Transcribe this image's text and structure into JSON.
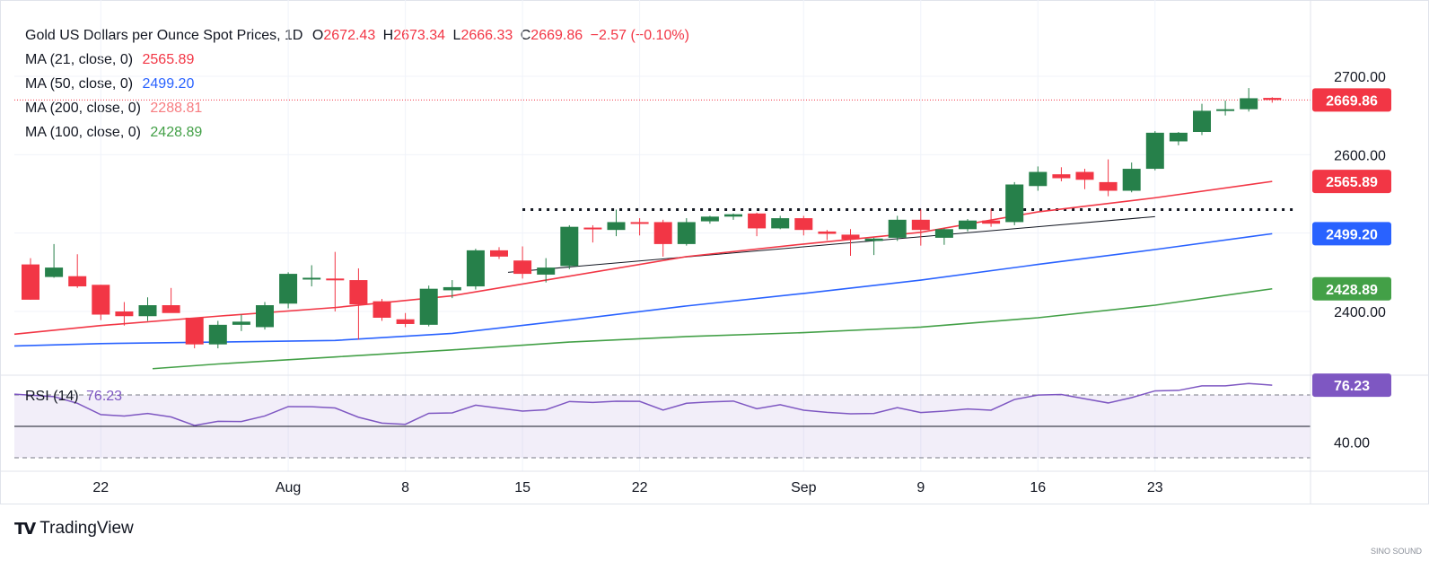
{
  "header": {
    "symbol": "Gold US Dollars per Ounce Spot Prices, 1D",
    "open_label": "O",
    "open": "2672.43",
    "high_label": "H",
    "high": "2673.34",
    "low_label": "L",
    "low": "2666.33",
    "close_label": "C",
    "close": "2669.86",
    "change": "−2.57 (−0.10%)"
  },
  "indicators": [
    {
      "label": "MA (21, close, 0)",
      "value": "2565.89",
      "color": "#f23645"
    },
    {
      "label": "MA (50, close, 0)",
      "value": "2499.20",
      "color": "#2962ff"
    },
    {
      "label": "MA (200, close, 0)",
      "value": "2288.81",
      "color": "#f77c80"
    },
    {
      "label": "MA (100, close, 0)",
      "value": "2428.89",
      "color": "#43a047"
    }
  ],
  "rsi": {
    "label": "RSI (14)",
    "value": "76.23",
    "color": "#7e57c2"
  },
  "branding": {
    "name": "TradingView",
    "watermark": "SINO SOUND"
  },
  "colors": {
    "up": "#26804a",
    "down": "#f23645",
    "ma21": "#f23645",
    "ma50": "#2962ff",
    "ma100": "#43a047",
    "rsi": "#7e57c2"
  },
  "chart_data": {
    "type": "candlestick",
    "price_axis": {
      "ticks": [
        "2700.00",
        "2600.00",
        "2400.00"
      ],
      "ylim": [
        2325,
        2727
      ]
    },
    "rsi_axis": {
      "ticks": [
        "40.00"
      ],
      "lines": [
        70,
        30
      ]
    },
    "x_ticks": [
      {
        "label": "22",
        "date": "2024-07-22"
      },
      {
        "label": "Aug",
        "date": "2024-08-01"
      },
      {
        "label": "8",
        "date": "2024-08-08"
      },
      {
        "label": "15",
        "date": "2024-08-15"
      },
      {
        "label": "22",
        "date": "2024-08-22"
      },
      {
        "label": "Sep",
        "date": "2024-09-02"
      },
      {
        "label": "9",
        "date": "2024-09-09"
      },
      {
        "label": "16",
        "date": "2024-09-16"
      },
      {
        "label": "23",
        "date": "2024-09-23"
      }
    ],
    "candles": [
      {
        "date": "2024-07-17",
        "o": 2460,
        "h": 2468,
        "l": 2415,
        "c": 2415
      },
      {
        "date": "2024-07-18",
        "o": 2444,
        "h": 2486,
        "l": 2443,
        "c": 2456
      },
      {
        "date": "2024-07-19",
        "o": 2445,
        "h": 2473,
        "l": 2430,
        "c": 2432
      },
      {
        "date": "2024-07-22",
        "o": 2434,
        "h": 2434,
        "l": 2389,
        "c": 2396
      },
      {
        "date": "2024-07-23",
        "o": 2400,
        "h": 2412,
        "l": 2382,
        "c": 2394
      },
      {
        "date": "2024-07-24",
        "o": 2394,
        "h": 2418,
        "l": 2388,
        "c": 2408
      },
      {
        "date": "2024-07-25",
        "o": 2408,
        "h": 2430,
        "l": 2400,
        "c": 2398
      },
      {
        "date": "2024-07-26",
        "o": 2392,
        "h": 2392,
        "l": 2353,
        "c": 2358
      },
      {
        "date": "2024-07-29",
        "o": 2358,
        "h": 2388,
        "l": 2353,
        "c": 2383
      },
      {
        "date": "2024-07-30",
        "o": 2383,
        "h": 2396,
        "l": 2375,
        "c": 2387
      },
      {
        "date": "2024-07-31",
        "o": 2380,
        "h": 2412,
        "l": 2377,
        "c": 2408
      },
      {
        "date": "2024-08-01",
        "o": 2410,
        "h": 2450,
        "l": 2404,
        "c": 2448
      },
      {
        "date": "2024-08-02",
        "o": 2443,
        "h": 2459,
        "l": 2432,
        "c": 2443
      },
      {
        "date": "2024-08-05",
        "o": 2442,
        "h": 2476,
        "l": 2400,
        "c": 2441
      },
      {
        "date": "2024-08-06",
        "o": 2440,
        "h": 2455,
        "l": 2364,
        "c": 2409
      },
      {
        "date": "2024-08-07",
        "o": 2413,
        "h": 2416,
        "l": 2388,
        "c": 2392
      },
      {
        "date": "2024-08-08",
        "o": 2390,
        "h": 2398,
        "l": 2380,
        "c": 2384
      },
      {
        "date": "2024-08-09",
        "o": 2383,
        "h": 2433,
        "l": 2381,
        "c": 2429
      },
      {
        "date": "2024-08-12",
        "o": 2427,
        "h": 2440,
        "l": 2417,
        "c": 2431
      },
      {
        "date": "2024-08-13",
        "o": 2432,
        "h": 2480,
        "l": 2428,
        "c": 2478
      },
      {
        "date": "2024-08-14",
        "o": 2478,
        "h": 2482,
        "l": 2467,
        "c": 2470
      },
      {
        "date": "2024-08-15",
        "o": 2465,
        "h": 2483,
        "l": 2442,
        "c": 2448
      },
      {
        "date": "2024-08-16",
        "o": 2447,
        "h": 2468,
        "l": 2437,
        "c": 2456
      },
      {
        "date": "2024-08-19",
        "o": 2458,
        "h": 2510,
        "l": 2454,
        "c": 2508
      },
      {
        "date": "2024-08-20",
        "o": 2507,
        "h": 2510,
        "l": 2488,
        "c": 2506
      },
      {
        "date": "2024-08-21",
        "o": 2504,
        "h": 2530,
        "l": 2496,
        "c": 2514
      },
      {
        "date": "2024-08-22",
        "o": 2514,
        "h": 2519,
        "l": 2497,
        "c": 2512
      },
      {
        "date": "2024-08-23",
        "o": 2514,
        "h": 2517,
        "l": 2470,
        "c": 2486
      },
      {
        "date": "2024-08-26",
        "o": 2486,
        "h": 2519,
        "l": 2484,
        "c": 2514
      },
      {
        "date": "2024-08-27",
        "o": 2515,
        "h": 2522,
        "l": 2512,
        "c": 2521
      },
      {
        "date": "2024-08-28",
        "o": 2521,
        "h": 2525,
        "l": 2517,
        "c": 2524
      },
      {
        "date": "2024-08-29",
        "o": 2525,
        "h": 2526,
        "l": 2496,
        "c": 2506
      },
      {
        "date": "2024-08-30",
        "o": 2506,
        "h": 2522,
        "l": 2505,
        "c": 2519
      },
      {
        "date": "2024-09-02",
        "o": 2519,
        "h": 2522,
        "l": 2497,
        "c": 2504
      },
      {
        "date": "2024-09-03",
        "o": 2502,
        "h": 2504,
        "l": 2491,
        "c": 2499
      },
      {
        "date": "2024-09-04",
        "o": 2498,
        "h": 2505,
        "l": 2471,
        "c": 2492
      },
      {
        "date": "2024-09-05",
        "o": 2490,
        "h": 2494,
        "l": 2472,
        "c": 2493
      },
      {
        "date": "2024-09-06",
        "o": 2494,
        "h": 2522,
        "l": 2490,
        "c": 2517
      },
      {
        "date": "2024-09-09",
        "o": 2517,
        "h": 2530,
        "l": 2484,
        "c": 2504
      },
      {
        "date": "2024-09-10",
        "o": 2494,
        "h": 2506,
        "l": 2485,
        "c": 2505
      },
      {
        "date": "2024-09-11",
        "o": 2505,
        "h": 2518,
        "l": 2502,
        "c": 2516
      },
      {
        "date": "2024-09-12",
        "o": 2516,
        "h": 2531,
        "l": 2508,
        "c": 2512
      },
      {
        "date": "2024-09-13",
        "o": 2514,
        "h": 2565,
        "l": 2510,
        "c": 2562
      },
      {
        "date": "2024-09-16",
        "o": 2560,
        "h": 2585,
        "l": 2554,
        "c": 2578
      },
      {
        "date": "2024-09-17",
        "o": 2575,
        "h": 2584,
        "l": 2566,
        "c": 2570
      },
      {
        "date": "2024-09-18",
        "o": 2578,
        "h": 2582,
        "l": 2556,
        "c": 2568
      },
      {
        "date": "2024-09-19",
        "o": 2565,
        "h": 2594,
        "l": 2547,
        "c": 2554
      },
      {
        "date": "2024-09-20",
        "o": 2554,
        "h": 2590,
        "l": 2552,
        "c": 2582
      },
      {
        "date": "2024-09-23",
        "o": 2582,
        "h": 2630,
        "l": 2580,
        "c": 2628
      },
      {
        "date": "2024-09-24",
        "o": 2617,
        "h": 2629,
        "l": 2612,
        "c": 2628
      },
      {
        "date": "2024-09-25",
        "o": 2629,
        "h": 2665,
        "l": 2625,
        "c": 2656
      },
      {
        "date": "2024-09-26",
        "o": 2656,
        "h": 2669,
        "l": 2650,
        "c": 2658
      },
      {
        "date": "2024-09-27",
        "o": 2658,
        "h": 2685,
        "l": 2655,
        "c": 2672
      },
      {
        "date": "2024-09-30",
        "o": 2672.43,
        "h": 2673.34,
        "l": 2666.33,
        "c": 2669.86
      }
    ],
    "moving_averages": [
      {
        "name": "MA 21",
        "color": "#f23645",
        "points": [
          [
            "2024-07-17",
            2371
          ],
          [
            "2024-07-22",
            2382
          ],
          [
            "2024-07-29",
            2394
          ],
          [
            "2024-08-05",
            2405
          ],
          [
            "2024-08-12",
            2420
          ],
          [
            "2024-08-19",
            2445
          ],
          [
            "2024-08-26",
            2470
          ],
          [
            "2024-09-02",
            2486
          ],
          [
            "2024-09-09",
            2501
          ],
          [
            "2024-09-16",
            2527
          ],
          [
            "2024-09-23",
            2545
          ],
          [
            "2024-09-30",
            2565.89
          ]
        ]
      },
      {
        "name": "MA 50",
        "color": "#2962ff",
        "points": [
          [
            "2024-07-17",
            2356
          ],
          [
            "2024-07-22",
            2359
          ],
          [
            "2024-07-29",
            2361
          ],
          [
            "2024-08-05",
            2363
          ],
          [
            "2024-08-12",
            2372
          ],
          [
            "2024-08-19",
            2389
          ],
          [
            "2024-08-26",
            2407
          ],
          [
            "2024-09-02",
            2423
          ],
          [
            "2024-09-09",
            2440
          ],
          [
            "2024-09-16",
            2460
          ],
          [
            "2024-09-23",
            2479
          ],
          [
            "2024-09-30",
            2499.2
          ]
        ]
      },
      {
        "name": "MA 100",
        "color": "#43a047",
        "points": [
          [
            "2024-07-23",
            2327
          ],
          [
            "2024-07-29",
            2333
          ],
          [
            "2024-08-05",
            2342
          ],
          [
            "2024-08-12",
            2351
          ],
          [
            "2024-08-19",
            2361
          ],
          [
            "2024-08-26",
            2368
          ],
          [
            "2024-09-02",
            2373
          ],
          [
            "2024-09-09",
            2380
          ],
          [
            "2024-09-16",
            2392
          ],
          [
            "2024-09-23",
            2408
          ],
          [
            "2024-09-30",
            2428.89
          ]
        ]
      }
    ],
    "annotations": {
      "resistance": {
        "from": "2024-08-15",
        "to": "2024-09-30",
        "price": 2530
      },
      "trendline": {
        "from": "2024-08-14",
        "to": "2024-09-23",
        "y1": 2450,
        "y2": 2521
      }
    },
    "rsi_series": [
      [
        "2024-07-17",
        70.5
      ],
      [
        "2024-07-18",
        68.9
      ],
      [
        "2024-07-19",
        64.7
      ],
      [
        "2024-07-22",
        57.5
      ],
      [
        "2024-07-23",
        56.6
      ],
      [
        "2024-07-24",
        58.2
      ],
      [
        "2024-07-25",
        56.0
      ],
      [
        "2024-07-26",
        50.6
      ],
      [
        "2024-07-29",
        53.2
      ],
      [
        "2024-07-30",
        53.1
      ],
      [
        "2024-07-31",
        56.6
      ],
      [
        "2024-08-01",
        62.6
      ],
      [
        "2024-08-02",
        62.5
      ],
      [
        "2024-08-05",
        61.7
      ],
      [
        "2024-08-06",
        55.8
      ],
      [
        "2024-08-07",
        52.1
      ],
      [
        "2024-08-08",
        51.3
      ],
      [
        "2024-08-09",
        58.3
      ],
      [
        "2024-08-12",
        58.6
      ],
      [
        "2024-08-13",
        63.5
      ],
      [
        "2024-08-14",
        61.6
      ],
      [
        "2024-08-15",
        59.7
      ],
      [
        "2024-08-16",
        60.6
      ],
      [
        "2024-08-19",
        65.8
      ],
      [
        "2024-08-20",
        65.2
      ],
      [
        "2024-08-21",
        66.0
      ],
      [
        "2024-08-22",
        65.9
      ],
      [
        "2024-08-23",
        60.4
      ],
      [
        "2024-08-26",
        64.7
      ],
      [
        "2024-08-27",
        65.6
      ],
      [
        "2024-08-28",
        66.1
      ],
      [
        "2024-08-29",
        61.2
      ],
      [
        "2024-08-30",
        63.8
      ],
      [
        "2024-09-02",
        60.3
      ],
      [
        "2024-09-03",
        58.9
      ],
      [
        "2024-09-04",
        58.0
      ],
      [
        "2024-09-05",
        58.2
      ],
      [
        "2024-09-06",
        61.9
      ],
      [
        "2024-09-09",
        58.8
      ],
      [
        "2024-09-10",
        59.7
      ],
      [
        "2024-09-11",
        61.1
      ],
      [
        "2024-09-12",
        60.3
      ],
      [
        "2024-09-13",
        67.1
      ],
      [
        "2024-09-16",
        69.9
      ],
      [
        "2024-09-17",
        70.3
      ],
      [
        "2024-09-18",
        67.6
      ],
      [
        "2024-09-19",
        64.9
      ],
      [
        "2024-09-20",
        68.3
      ],
      [
        "2024-09-23",
        72.6
      ],
      [
        "2024-09-24",
        72.9
      ],
      [
        "2024-09-25",
        75.8
      ],
      [
        "2024-09-26",
        75.8
      ],
      [
        "2024-09-27",
        77.3
      ],
      [
        "2024-09-30",
        76.23
      ]
    ]
  }
}
